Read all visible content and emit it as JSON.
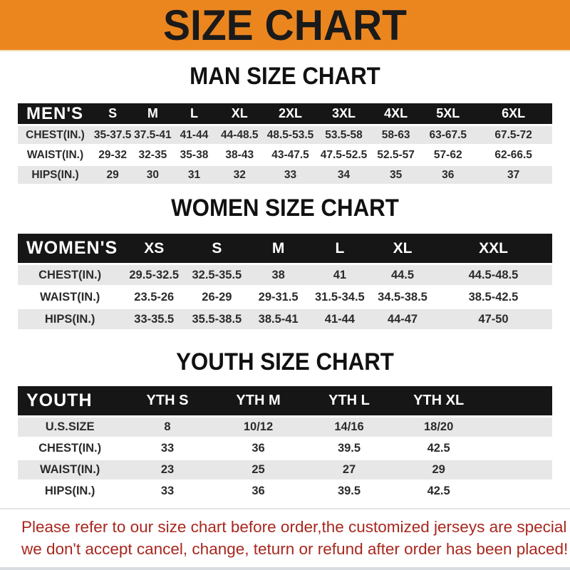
{
  "banner": {
    "title": "SIZE CHART"
  },
  "colors": {
    "banner_bg": "#EB861F",
    "table_header_bg": "#161616",
    "row_alt_bg": "#E7E7E7",
    "notice_text": "#A8271E"
  },
  "sections": [
    {
      "heading": "MAN SIZE CHART",
      "table": {
        "name": "men-size-table",
        "header_label": "MEN'S",
        "columns": [
          "S",
          "M",
          "L",
          "XL",
          "2XL",
          "3XL",
          "4XL",
          "5XL",
          "6XL"
        ],
        "rows": [
          {
            "label": "CHEST(IN.)",
            "values": [
              "35-37.5",
              "37.5-41",
              "41-44",
              "44-48.5",
              "48.5-53.5",
              "53.5-58",
              "58-63",
              "63-67.5",
              "67.5-72"
            ]
          },
          {
            "label": "WAIST(IN.)",
            "values": [
              "29-32",
              "32-35",
              "35-38",
              "38-43",
              "43-47.5",
              "47.5-52.5",
              "52.5-57",
              "57-62",
              "62-66.5"
            ]
          },
          {
            "label": "HIPS(IN.)",
            "values": [
              "29",
              "30",
              "31",
              "32",
              "33",
              "34",
              "35",
              "36",
              "37"
            ]
          }
        ]
      }
    },
    {
      "heading": "WOMEN SIZE CHART",
      "table": {
        "name": "women-size-table",
        "header_label": "WOMEN'S",
        "columns": [
          "XS",
          "S",
          "M",
          "L",
          "XL",
          "XXL"
        ],
        "rows": [
          {
            "label": "CHEST(IN.)",
            "values": [
              "29.5-32.5",
              "32.5-35.5",
              "38",
              "41",
              "44.5",
              "44.5-48.5"
            ]
          },
          {
            "label": "WAIST(IN.)",
            "values": [
              "23.5-26",
              "26-29",
              "29-31.5",
              "31.5-34.5",
              "34.5-38.5",
              "38.5-42.5"
            ]
          },
          {
            "label": "HIPS(IN.)",
            "values": [
              "33-35.5",
              "35.5-38.5",
              "38.5-41",
              "41-44",
              "44-47",
              "47-50"
            ]
          }
        ]
      }
    },
    {
      "heading": "YOUTH SIZE CHART",
      "table": {
        "name": "youth-size-table",
        "header_label": "YOUTH",
        "columns": [
          "YTH S",
          "YTH M",
          "YTH L",
          "YTH XL"
        ],
        "rows": [
          {
            "label": "U.S.SIZE",
            "values": [
              "8",
              "10/12",
              "14/16",
              "18/20"
            ]
          },
          {
            "label": "CHEST(IN.)",
            "values": [
              "33",
              "36",
              "39.5",
              "42.5"
            ]
          },
          {
            "label": "WAIST(IN.)",
            "values": [
              "23",
              "25",
              "27",
              "29"
            ]
          },
          {
            "label": "HIPS(IN.)",
            "values": [
              "33",
              "36",
              "39.5",
              "42.5"
            ]
          }
        ]
      }
    }
  ],
  "footer": {
    "line1": "Please refer to our size chart before order,the customized jerseys are special products,",
    "line2": "we don't accept cancel, change, teturn or refund after order has been placed!"
  }
}
